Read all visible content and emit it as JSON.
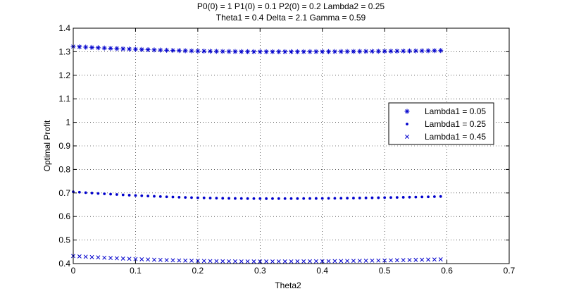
{
  "chart_data": {
    "type": "scatter",
    "title_lines": [
      "P0(0) = 1 P1(0) = 0.1 P2(0) = 0.2 Lambda2 = 0.25",
      "Theta1 = 0.4 Delta = 2.1 Gamma = 0.59"
    ],
    "xlabel": "Theta2",
    "ylabel": "Optimal Profit",
    "xlim": [
      0,
      0.7
    ],
    "ylim": [
      0.4,
      1.4
    ],
    "x_ticks": [
      "0",
      "0.1",
      "0.2",
      "0.3",
      "0.4",
      "0.5",
      "0.6",
      "0.7"
    ],
    "y_ticks": [
      "0.4",
      "0.5",
      "0.6",
      "0.7",
      "0.8",
      "0.9",
      "1",
      "1.1",
      "1.2",
      "1.3",
      "1.4"
    ],
    "x_tick_values": [
      0,
      0.1,
      0.2,
      0.3,
      0.4,
      0.5,
      0.6,
      0.7
    ],
    "y_tick_values": [
      0.4,
      0.5,
      0.6,
      0.7,
      0.8,
      0.9,
      1.0,
      1.1,
      1.2,
      1.3,
      1.4
    ],
    "grid": true,
    "legend_position": "right",
    "x_range": {
      "start": 0,
      "end": 0.59,
      "step": 0.01
    },
    "series": [
      {
        "name": "Lambda1 = 0.05",
        "marker": "asterisk",
        "color": "#0000cc",
        "y_start": 1.322,
        "y_min": 1.3,
        "x_at_min": 0.32,
        "y_end": 1.305
      },
      {
        "name": "Lambda1 = 0.25",
        "marker": "dot",
        "color": "#0000cc",
        "y_start": 0.705,
        "y_min": 0.676,
        "x_at_min": 0.31,
        "y_end": 0.685
      },
      {
        "name": "Lambda1 = 0.45",
        "marker": "cross",
        "color": "#0000cc",
        "y_start": 0.432,
        "y_min": 0.409,
        "x_at_min": 0.3,
        "y_end": 0.418
      }
    ]
  }
}
